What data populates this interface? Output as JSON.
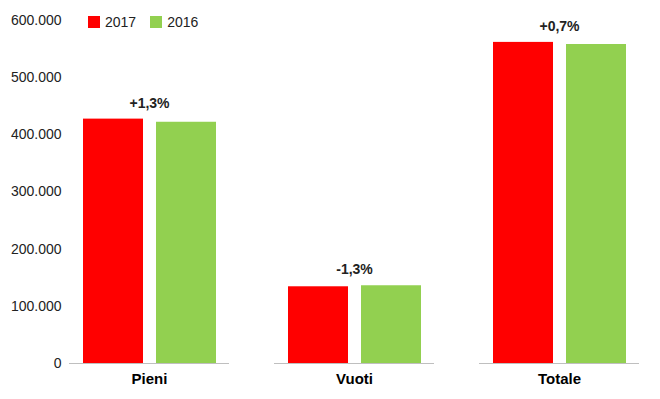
{
  "chart_data": {
    "type": "bar",
    "categories": [
      "Pieni",
      "Vuoti",
      "Totale"
    ],
    "series": [
      {
        "name": "2017",
        "color": "#ff0000",
        "values": [
          427500,
          134200,
          561700
        ]
      },
      {
        "name": "2016",
        "color": "#92d050",
        "values": [
          422000,
          136000,
          558000
        ]
      }
    ],
    "annotations": [
      {
        "category": "Pieni",
        "text": "+1,3%"
      },
      {
        "category": "Vuoti",
        "text": "-1,3%"
      },
      {
        "category": "Totale",
        "text": "+0,7%"
      }
    ],
    "ylim": [
      0,
      600000
    ],
    "yticks": [
      0,
      {
        "value": 100000,
        "label": "100.000"
      },
      {
        "value": 200000,
        "label": "200.000"
      },
      {
        "value": 300000,
        "label": "300.000"
      },
      {
        "value": 400000,
        "label": "400.000"
      },
      {
        "value": 500000,
        "label": "500.000"
      },
      {
        "value": 600000,
        "label": "600.000"
      }
    ],
    "grid": false,
    "legend": "top-left",
    "data_labels": false
  }
}
